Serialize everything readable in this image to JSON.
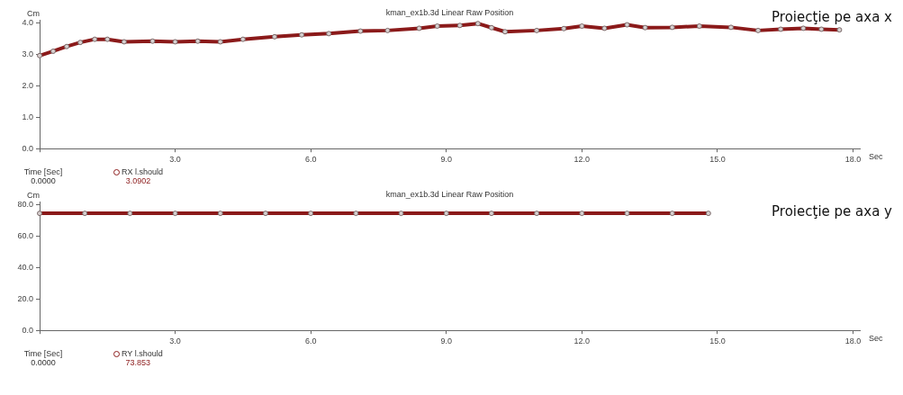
{
  "chart_data": [
    {
      "type": "line",
      "title": "kman_ex1b.3d Linear Raw Position",
      "xlabel": "Sec",
      "ylabel": "Cm",
      "legend": "bottom left",
      "marker": "circle",
      "grid": false,
      "annotations": [
        "Proiecţie pe axa x",
        "Time [Sec]",
        "0.0000",
        "3.0902"
      ],
      "x": [
        0,
        0.3,
        0.6,
        0.9,
        1.22,
        1.5,
        1.87,
        2.5,
        3.0,
        3.5,
        4.0,
        4.5,
        5.2,
        5.8,
        6.4,
        7.1,
        7.7,
        8.4,
        8.8,
        9.3,
        9.7,
        10.0,
        10.3,
        11.0,
        11.6,
        12.0,
        12.5,
        13.0,
        13.4,
        14.0,
        14.6,
        15.3,
        15.9,
        16.4,
        16.9,
        17.3,
        17.7
      ],
      "xlim": [
        0,
        18.15
      ],
      "xticks": [
        {
          "value": 0,
          "label": null
        },
        {
          "value": 3,
          "label": "3.0"
        },
        {
          "value": 6,
          "label": "6.0"
        },
        {
          "value": 9,
          "label": "9.0"
        },
        {
          "value": 12,
          "label": "12.0"
        },
        {
          "value": 15,
          "label": "15.0"
        },
        {
          "value": 18,
          "label": "18.0"
        }
      ],
      "ylim": [
        0,
        4.1
      ],
      "yticks": [
        {
          "value": 0,
          "label": "0.0"
        },
        {
          "value": 1,
          "label": "1.0"
        },
        {
          "value": 2,
          "label": "2.0"
        },
        {
          "value": 3,
          "label": "3.0"
        },
        {
          "value": 4,
          "label": "4.0"
        }
      ],
      "series": [
        {
          "name": "RX l.should",
          "color": "#8b1a1a",
          "values": [
            2.96,
            3.1,
            3.25,
            3.38,
            3.48,
            3.48,
            3.4,
            3.42,
            3.4,
            3.42,
            3.4,
            3.48,
            3.56,
            3.62,
            3.66,
            3.74,
            3.76,
            3.83,
            3.9,
            3.92,
            3.98,
            3.85,
            3.72,
            3.76,
            3.82,
            3.9,
            3.83,
            3.94,
            3.85,
            3.86,
            3.9,
            3.86,
            3.76,
            3.8,
            3.83,
            3.8,
            3.78
          ]
        }
      ]
    },
    {
      "type": "line",
      "title": "kman_ex1b.3d Linear Raw Position",
      "xlabel": "Sec",
      "ylabel": "Cm",
      "legend": "bottom left",
      "marker": "circle",
      "grid": false,
      "annotations": [
        "Proiecţie pe axa y",
        "Time [Sec]",
        "0.0000",
        "73.853"
      ],
      "x": [
        0,
        1,
        2,
        3,
        4,
        5,
        6,
        7,
        8,
        9,
        10,
        11,
        12,
        13,
        14,
        14.8
      ],
      "xlim": [
        0,
        18.15
      ],
      "xticks": [
        {
          "value": 0,
          "label": null
        },
        {
          "value": 3,
          "label": "3.0"
        },
        {
          "value": 6,
          "label": "6.0"
        },
        {
          "value": 9,
          "label": "9.0"
        },
        {
          "value": 12,
          "label": "12.0"
        },
        {
          "value": 15,
          "label": "15.0"
        },
        {
          "value": 18,
          "label": "18.0"
        }
      ],
      "ylim": [
        0,
        82
      ],
      "yticks": [
        {
          "value": 0,
          "label": "0.0"
        },
        {
          "value": 20,
          "label": "20.0"
        },
        {
          "value": 40,
          "label": "40.0"
        },
        {
          "value": 60,
          "label": "60.0"
        },
        {
          "value": 80,
          "label": "80.0"
        }
      ],
      "series": [
        {
          "name": "RY l.should",
          "color": "#8b1a1a",
          "values": [
            74.5,
            74.5,
            74.5,
            74.5,
            74.5,
            74.5,
            74.5,
            74.5,
            74.5,
            74.5,
            74.5,
            74.5,
            74.5,
            74.5,
            74.5,
            74.5
          ]
        }
      ]
    }
  ]
}
